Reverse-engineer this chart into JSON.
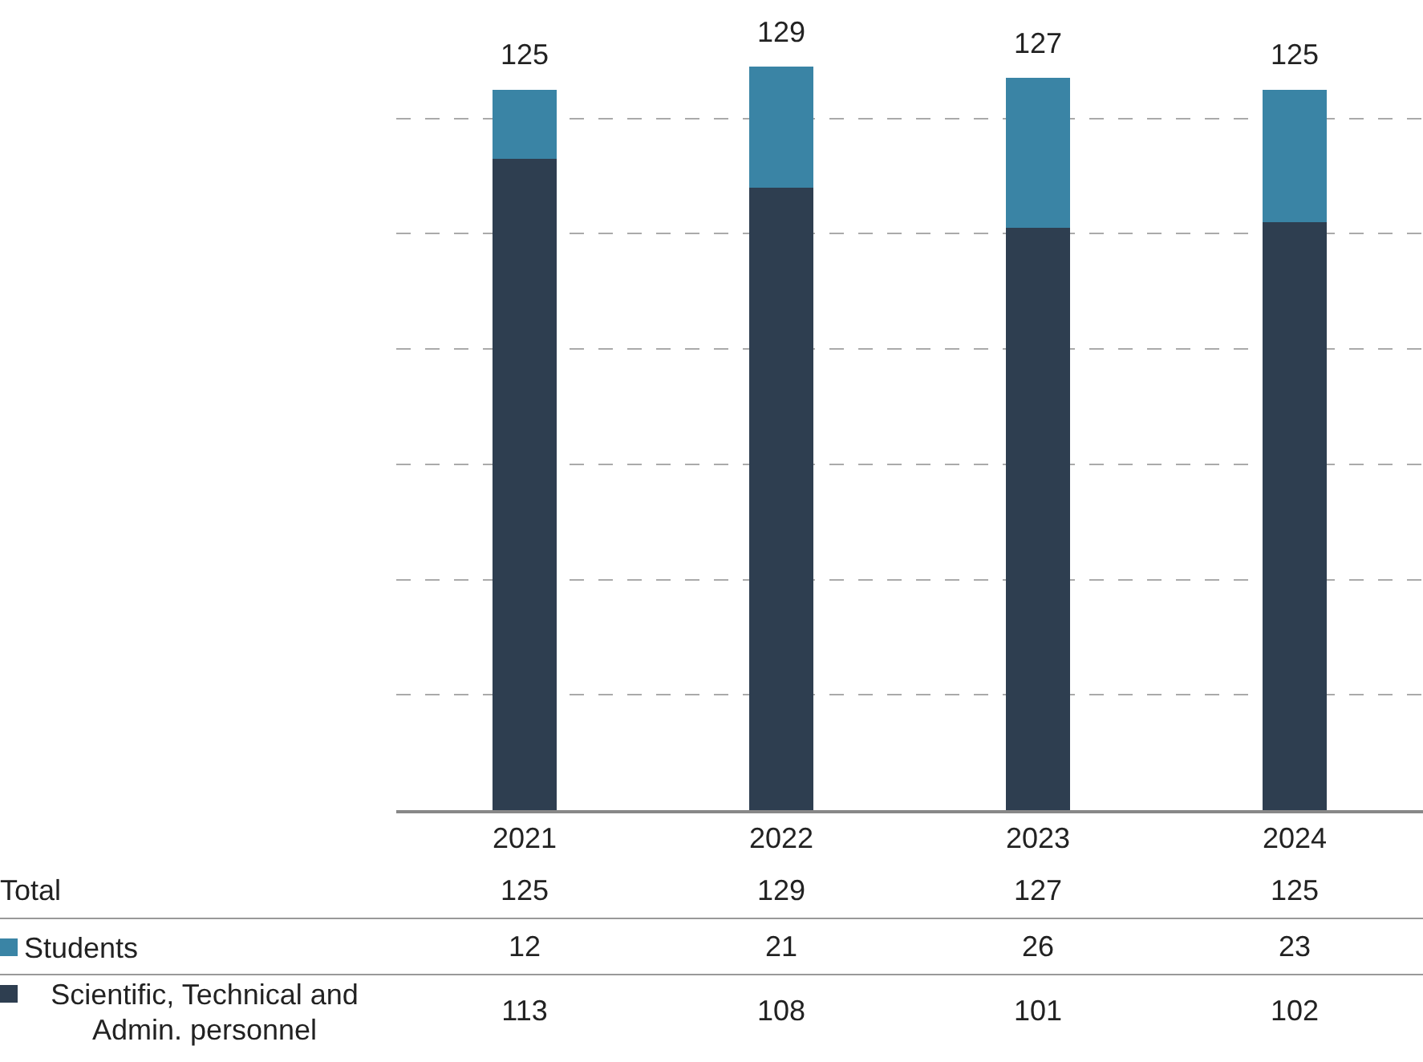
{
  "chart_data": {
    "type": "bar",
    "stacked": true,
    "categories": [
      "2021",
      "2022",
      "2023",
      "2024"
    ],
    "series": [
      {
        "name": "Scientific, Technical and Admin. personnel",
        "color": "#2e3e50",
        "values": [
          113,
          108,
          101,
          102
        ]
      },
      {
        "name": "Students",
        "color": "#3a84a5",
        "values": [
          12,
          21,
          26,
          23
        ]
      }
    ],
    "totals": [
      "125",
      "129",
      "127",
      "125"
    ],
    "annotations": [
      "Total"
    ],
    "data_labels": true,
    "ylim": [
      0,
      140
    ],
    "yticks": [
      {
        "value": 0,
        "label": null
      },
      {
        "value": 20,
        "label": null
      },
      {
        "value": 40,
        "label": null
      },
      {
        "value": 60,
        "label": null
      },
      {
        "value": 80,
        "label": null
      },
      {
        "value": 100,
        "label": null
      },
      {
        "value": 120,
        "label": null
      },
      {
        "value": 140,
        "label": null
      }
    ],
    "grid": "y",
    "legend": "bottom left",
    "tick_labels": "x"
  }
}
